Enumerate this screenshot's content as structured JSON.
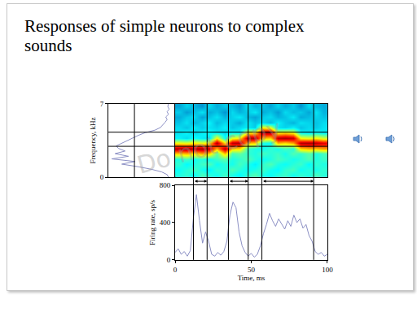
{
  "title": "Responses of simple neurons to complex sounds",
  "watermark": "Do not copy",
  "chart_data": [
    {
      "type": "line",
      "y": [
        0,
        0.25,
        0.5,
        0.75,
        1,
        1.25,
        1.5,
        1.75,
        2,
        2.25,
        2.5,
        2.75,
        3,
        3.25,
        3.5,
        3.75,
        4,
        4.25,
        4.5,
        4.75,
        5,
        5.25,
        5.5,
        5.75,
        6,
        6.25,
        6.5,
        6.75,
        7
      ],
      "values": [
        0.1,
        0.12,
        0.2,
        0.35,
        0.55,
        0.8,
        0.6,
        0.95,
        0.7,
        0.9,
        0.75,
        0.85,
        0.88,
        0.8,
        0.7,
        0.62,
        0.55,
        0.45,
        0.3,
        0.22,
        0.18,
        0.15,
        0.12,
        0.14,
        0.1,
        0.12,
        0.09,
        0.11,
        0.1
      ],
      "xlim": [
        1,
        0
      ],
      "ylim": [
        0,
        7
      ],
      "yticks": [
        0,
        7
      ],
      "ylabel": "Frequency, kHz",
      "tick_labels": "y",
      "color": "#8b8fc4",
      "vlines": [
        0.61
      ]
    },
    {
      "type": "heatmap",
      "x": [
        2.5,
        7.5,
        12.5,
        17.5,
        22.5,
        27.5,
        32.5,
        37.5,
        42.5,
        47.5,
        52.5,
        57.5,
        62.5,
        67.5,
        72.5,
        77.5,
        82.5,
        87.5,
        92.5,
        97.5
      ],
      "y": [
        0.25,
        0.75,
        1.25,
        1.75,
        2.25,
        2.75,
        3.25,
        3.75,
        4.25,
        4.75,
        5.25,
        5.75,
        6.25,
        6.75
      ],
      "z": [
        [
          0.4,
          0.42,
          0.38,
          0.44,
          0.41,
          0.39,
          0.43,
          0.4,
          0.37,
          0.42,
          0.45,
          0.4,
          0.38,
          0.41,
          0.43,
          0.39,
          0.42,
          0.4,
          0.44,
          0.41
        ],
        [
          0.38,
          0.41,
          0.44,
          0.39,
          0.36,
          0.42,
          0.4,
          0.45,
          0.41,
          0.38,
          0.4,
          0.43,
          0.39,
          0.37,
          0.42,
          0.44,
          0.38,
          0.41,
          0.39,
          0.42
        ],
        [
          0.42,
          0.37,
          0.4,
          0.43,
          0.45,
          0.38,
          0.41,
          0.39,
          0.44,
          0.4,
          0.36,
          0.42,
          0.45,
          0.4,
          0.38,
          0.41,
          0.43,
          0.37,
          0.42,
          0.4
        ],
        [
          0.4,
          0.44,
          0.39,
          0.41,
          0.38,
          0.43,
          0.46,
          0.4,
          0.42,
          0.45,
          0.41,
          0.38,
          0.4,
          0.44,
          0.42,
          0.39,
          0.41,
          0.45,
          0.4,
          0.43
        ],
        [
          0.68,
          0.7,
          0.66,
          0.72,
          0.67,
          0.46,
          0.69,
          0.44,
          0.47,
          0.42,
          0.4,
          0.44,
          0.41,
          0.43,
          0.39,
          0.45,
          0.42,
          0.46,
          0.4,
          0.44
        ],
        [
          0.95,
          0.97,
          0.94,
          0.96,
          0.93,
          0.7,
          0.95,
          0.68,
          0.66,
          0.43,
          0.4,
          0.38,
          0.42,
          0.39,
          0.44,
          0.41,
          0.67,
          0.7,
          0.69,
          0.72
        ],
        [
          0.62,
          0.6,
          0.64,
          0.61,
          0.65,
          0.96,
          0.66,
          0.94,
          0.95,
          0.69,
          0.67,
          0.4,
          0.38,
          0.7,
          0.66,
          0.72,
          0.95,
          0.96,
          0.94,
          0.9
        ],
        [
          0.36,
          0.33,
          0.38,
          0.35,
          0.34,
          0.63,
          0.37,
          0.6,
          0.64,
          0.95,
          0.96,
          0.7,
          0.67,
          0.94,
          0.96,
          0.93,
          0.62,
          0.6,
          0.63,
          0.58
        ],
        [
          0.34,
          0.37,
          0.32,
          0.36,
          0.38,
          0.35,
          0.33,
          0.37,
          0.35,
          0.62,
          0.63,
          0.95,
          0.96,
          0.61,
          0.64,
          0.6,
          0.36,
          0.34,
          0.37,
          0.35
        ],
        [
          0.33,
          0.3,
          0.35,
          0.31,
          0.34,
          0.32,
          0.36,
          0.3,
          0.33,
          0.35,
          0.31,
          0.62,
          0.6,
          0.34,
          0.32,
          0.36,
          0.3,
          0.33,
          0.31,
          0.34
        ],
        [
          0.3,
          0.34,
          0.28,
          0.32,
          0.36,
          0.29,
          0.33,
          0.31,
          0.27,
          0.35,
          0.3,
          0.33,
          0.29,
          0.36,
          0.31,
          0.28,
          0.34,
          0.32,
          0.3,
          0.33
        ],
        [
          0.27,
          0.31,
          0.33,
          0.26,
          0.3,
          0.34,
          0.28,
          0.32,
          0.35,
          0.29,
          0.26,
          0.31,
          0.33,
          0.28,
          0.3,
          0.35,
          0.27,
          0.29,
          0.32,
          0.3
        ],
        [
          0.31,
          0.25,
          0.29,
          0.34,
          0.27,
          0.3,
          0.24,
          0.33,
          0.28,
          0.31,
          0.35,
          0.27,
          0.3,
          0.25,
          0.33,
          0.29,
          0.31,
          0.26,
          0.34,
          0.28
        ],
        [
          0.26,
          0.32,
          0.28,
          0.24,
          0.33,
          0.27,
          0.31,
          0.29,
          0.25,
          0.34,
          0.28,
          0.3,
          0.26,
          0.32,
          0.27,
          0.31,
          0.24,
          0.33,
          0.29,
          0.27
        ]
      ],
      "zlim": [
        0,
        1
      ],
      "xlim": [
        0,
        100
      ],
      "ylim": [
        0,
        7
      ],
      "tick_labels": false,
      "hlines": [
        2.95,
        4.3
      ]
    },
    {
      "type": "line",
      "x": [
        0,
        2,
        4,
        6,
        8,
        10,
        12,
        14,
        16,
        18,
        20,
        22,
        24,
        26,
        28,
        30,
        32,
        34,
        36,
        38,
        40,
        42,
        44,
        46,
        48,
        50,
        52,
        54,
        56,
        58,
        60,
        62,
        64,
        66,
        68,
        70,
        72,
        74,
        76,
        78,
        80,
        82,
        84,
        86,
        88,
        90,
        92,
        94,
        96,
        98,
        100
      ],
      "values": [
        80,
        120,
        60,
        90,
        40,
        100,
        450,
        700,
        420,
        180,
        300,
        200,
        60,
        40,
        80,
        50,
        90,
        200,
        480,
        620,
        560,
        300,
        150,
        80,
        40,
        70,
        30,
        60,
        150,
        280,
        380,
        500,
        420,
        360,
        440,
        380,
        330,
        420,
        360,
        480,
        400,
        440,
        340,
        380,
        260,
        200,
        90,
        60,
        80,
        40,
        60
      ],
      "xlim": [
        0,
        100
      ],
      "xticks": [
        0,
        50,
        100
      ],
      "ylim": [
        0,
        800
      ],
      "yticks": [
        0,
        400,
        800
      ],
      "xlabel": "Time, ms",
      "ylabel": "Firing rate, sp/s",
      "color": "#8b8fc4",
      "windows": [
        [
          12,
          21
        ],
        [
          35,
          48
        ],
        [
          57,
          91
        ]
      ]
    }
  ]
}
